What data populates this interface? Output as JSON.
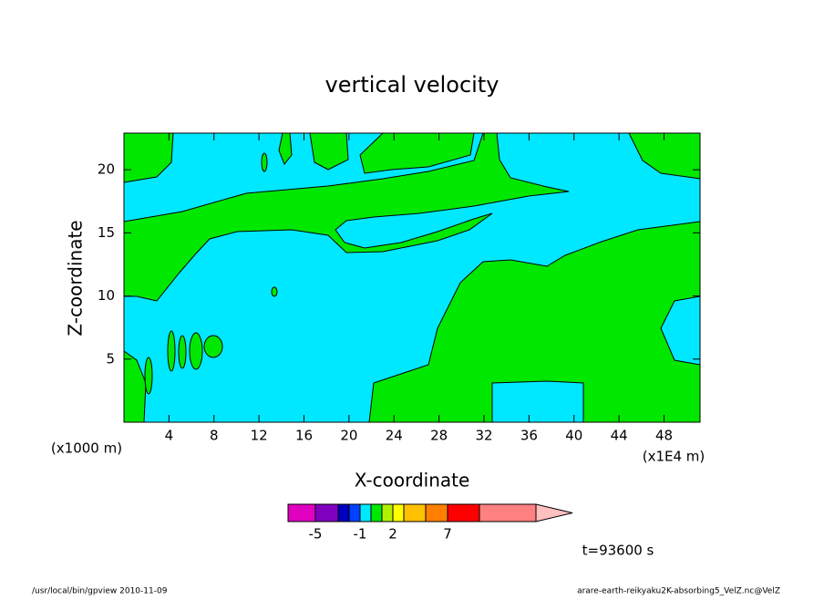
{
  "chart_data": {
    "type": "contour",
    "title": "vertical velocity",
    "x_label": "X-coordinate",
    "y_label": "Z-coordinate",
    "x_unit": "(x1E4 m)",
    "y_unit": "(x1000 m)",
    "xlim": [
      0,
      51.2
    ],
    "xticks": [
      4,
      8,
      12,
      16,
      20,
      24,
      28,
      32,
      36,
      40,
      44,
      48
    ],
    "ylim": [
      0,
      22.9
    ],
    "yticks": [
      5,
      10,
      15,
      20
    ],
    "fill_colors": [
      "#00e8ff",
      "#00e800"
    ],
    "colorbar": {
      "colors": [
        "#e000c0",
        "#8000c0",
        "#0000c0",
        "#0040ff",
        "#00e8ff",
        "#00e800",
        "#b0f000",
        "#ffff00",
        "#ffc000",
        "#ff8000",
        "#ff0000",
        "#ff8080",
        "#ffc0c0"
      ],
      "ticks": [
        -5,
        -1,
        2,
        7
      ]
    },
    "time_label": "t=93600 s",
    "footer_left": "/usr/local/bin/gpview  2010-11-09",
    "footer_right": "arare-earth-reikyaku2K-absorbing5_VelZ.nc@VelZ"
  }
}
